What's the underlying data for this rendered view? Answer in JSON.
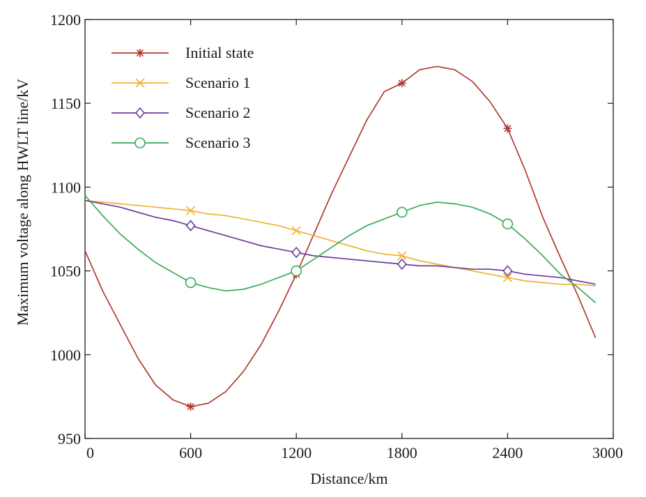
{
  "chart_data": {
    "type": "line",
    "title": "",
    "xlabel": "Distance/km",
    "ylabel": "Maximum voltage along HWLT line/kV",
    "xlim": [
      0,
      3000
    ],
    "ylim": [
      950,
      1200
    ],
    "xticks": [
      0,
      600,
      1200,
      1800,
      2400,
      3000
    ],
    "yticks": [
      950,
      1000,
      1050,
      1100,
      1150,
      1200
    ],
    "grid": false,
    "legend_position": "top-left",
    "series": [
      {
        "name": "Initial state",
        "color": "#b03a2e",
        "marker": "asterisk",
        "marker_x": [
          600,
          1200,
          1800,
          2400
        ],
        "x": [
          0,
          100,
          200,
          300,
          400,
          500,
          600,
          700,
          800,
          900,
          1000,
          1100,
          1200,
          1300,
          1400,
          1500,
          1600,
          1700,
          1800,
          1900,
          2000,
          2100,
          2200,
          2300,
          2400,
          2500,
          2600,
          2700,
          2800,
          2900
        ],
        "y": [
          1062,
          1038,
          1018,
          998,
          982,
          973,
          969,
          971,
          978,
          990,
          1006,
          1026,
          1048,
          1072,
          1096,
          1118,
          1140,
          1157,
          1162,
          1170,
          1172,
          1170,
          1163,
          1151,
          1135,
          1110,
          1082,
          1058,
          1035,
          1010
        ]
      },
      {
        "name": "Scenario 1",
        "color": "#f0b030",
        "marker": "x",
        "marker_x": [
          600,
          1200,
          1800,
          2400
        ],
        "x": [
          0,
          100,
          200,
          300,
          400,
          500,
          600,
          700,
          800,
          900,
          1000,
          1100,
          1200,
          1300,
          1400,
          1500,
          1600,
          1700,
          1800,
          1900,
          2000,
          2100,
          2200,
          2300,
          2400,
          2500,
          2600,
          2700,
          2800,
          2900
        ],
        "y": [
          1092,
          1091,
          1090,
          1089,
          1088,
          1087,
          1086,
          1084,
          1083,
          1081,
          1079,
          1077,
          1074,
          1071,
          1068,
          1065,
          1062,
          1060,
          1059,
          1056,
          1054,
          1052,
          1050,
          1048,
          1046,
          1044,
          1043,
          1042,
          1042,
          1041
        ]
      },
      {
        "name": "Scenario 2",
        "color": "#6a3d9a",
        "marker": "diamond",
        "marker_x": [
          600,
          1200,
          1800,
          2400
        ],
        "x": [
          0,
          100,
          200,
          300,
          400,
          500,
          600,
          700,
          800,
          900,
          1000,
          1100,
          1200,
          1300,
          1400,
          1500,
          1600,
          1700,
          1800,
          1900,
          2000,
          2100,
          2200,
          2300,
          2400,
          2500,
          2600,
          2700,
          2800,
          2900
        ],
        "y": [
          1092,
          1090,
          1088,
          1085,
          1082,
          1080,
          1077,
          1074,
          1071,
          1068,
          1065,
          1063,
          1061,
          1059,
          1058,
          1057,
          1056,
          1055,
          1054,
          1053,
          1053,
          1052,
          1051,
          1051,
          1050,
          1048,
          1047,
          1046,
          1044,
          1042
        ]
      },
      {
        "name": "Scenario 3",
        "color": "#3aaa5a",
        "marker": "circle",
        "marker_x": [
          600,
          1200,
          1800,
          2400
        ],
        "x": [
          0,
          100,
          200,
          300,
          400,
          500,
          600,
          700,
          800,
          900,
          1000,
          1100,
          1200,
          1300,
          1400,
          1500,
          1600,
          1700,
          1800,
          1900,
          2000,
          2100,
          2200,
          2300,
          2400,
          2500,
          2600,
          2700,
          2800,
          2900
        ],
        "y": [
          1095,
          1083,
          1072,
          1063,
          1055,
          1049,
          1043,
          1040,
          1038,
          1039,
          1042,
          1046,
          1050,
          1057,
          1064,
          1071,
          1077,
          1081,
          1085,
          1089,
          1091,
          1090,
          1088,
          1084,
          1078,
          1069,
          1059,
          1048,
          1040,
          1031
        ]
      }
    ]
  }
}
